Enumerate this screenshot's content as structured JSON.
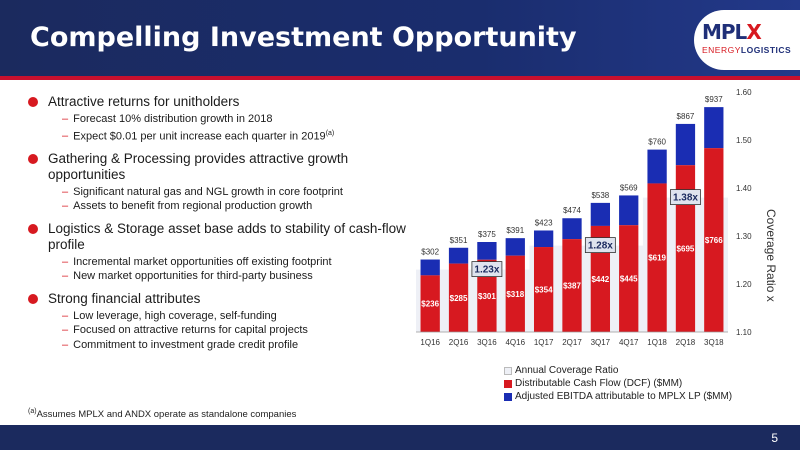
{
  "header": {
    "title": "Compelling Investment Opportunity"
  },
  "logo": {
    "main_left": "MPL",
    "main_right": "X",
    "sub_left": "ENERGY",
    "sub_right": "LOGISTICS"
  },
  "bullets": [
    {
      "text": "Attractive returns for unitholders",
      "subs": [
        "Forecast 10% distribution growth in 2018",
        "Expect $0.01 per unit increase each quarter in 2019"
      ]
    },
    {
      "text": "Gathering & Processing provides attractive growth opportunities",
      "subs": [
        "Significant natural gas and NGL growth in core footprint",
        "Assets to benefit from regional production growth"
      ]
    },
    {
      "text": "Logistics & Storage asset base adds to stability of cash-flow profile",
      "subs": [
        "Incremental market opportunities off existing footprint",
        "New market opportunities for third-party business"
      ]
    },
    {
      "text": "Strong financial attributes",
      "subs": [
        "Low leverage, high coverage, self-funding",
        "Focused on attractive returns for capital projects",
        "Commitment to investment grade credit profile"
      ]
    }
  ],
  "footnote_marker": "(a)",
  "footnote": "Assumes MPLX and ANDX operate as standalone companies",
  "page_number": "5",
  "colors": {
    "navy": "#1b2a5e",
    "red": "#d71920",
    "blue": "#1a2db3",
    "ratio": "#eef0f6"
  },
  "chart_data": {
    "type": "bar",
    "categories": [
      "1Q16",
      "2Q16",
      "3Q16",
      "4Q16",
      "1Q17",
      "2Q17",
      "3Q17",
      "4Q17",
      "1Q18",
      "2Q18",
      "3Q18"
    ],
    "series": [
      {
        "name": "Distributable Cash Flow (DCF) ($MM)",
        "values": [
          236,
          285,
          301,
          318,
          354,
          387,
          442,
          445,
          619,
          695,
          766
        ],
        "labels": [
          "$236",
          "$285",
          "$301",
          "$318",
          "$354",
          "$387",
          "$442",
          "$445",
          "$619",
          "$695",
          "$766"
        ]
      },
      {
        "name": "Adjusted EBITDA attributable to MPLX LP ($MM)",
        "values": [
          302,
          351,
          375,
          391,
          423,
          474,
          538,
          569,
          760,
          867,
          937
        ],
        "labels": [
          "$302",
          "$351",
          "$375",
          "$391",
          "$423",
          "$474",
          "$538",
          "$569",
          "$760",
          "$867",
          "$937"
        ]
      },
      {
        "name": "Annual Coverage Ratio",
        "values": [
          1.23,
          1.23,
          1.23,
          1.23,
          1.28,
          1.28,
          1.28,
          1.28,
          1.38,
          1.38,
          1.38
        ]
      }
    ],
    "left_axis_max": 1000,
    "y2label": "Coverage Ratio x",
    "y2lim": [
      1.1,
      1.6
    ],
    "y2ticks": [
      "1.60",
      "1.50",
      "1.40",
      "1.30",
      "1.20",
      "1.10"
    ],
    "ratio_callouts": [
      "1.23x",
      "1.28x",
      "1.38x"
    ],
    "ratio_callout_positions": [
      2,
      6,
      9
    ],
    "legend": [
      "Annual Coverage Ratio",
      "Distributable Cash Flow (DCF) ($MM)",
      "Adjusted EBITDA attributable to MPLX LP ($MM)"
    ],
    "legend_placement": "bottom"
  }
}
